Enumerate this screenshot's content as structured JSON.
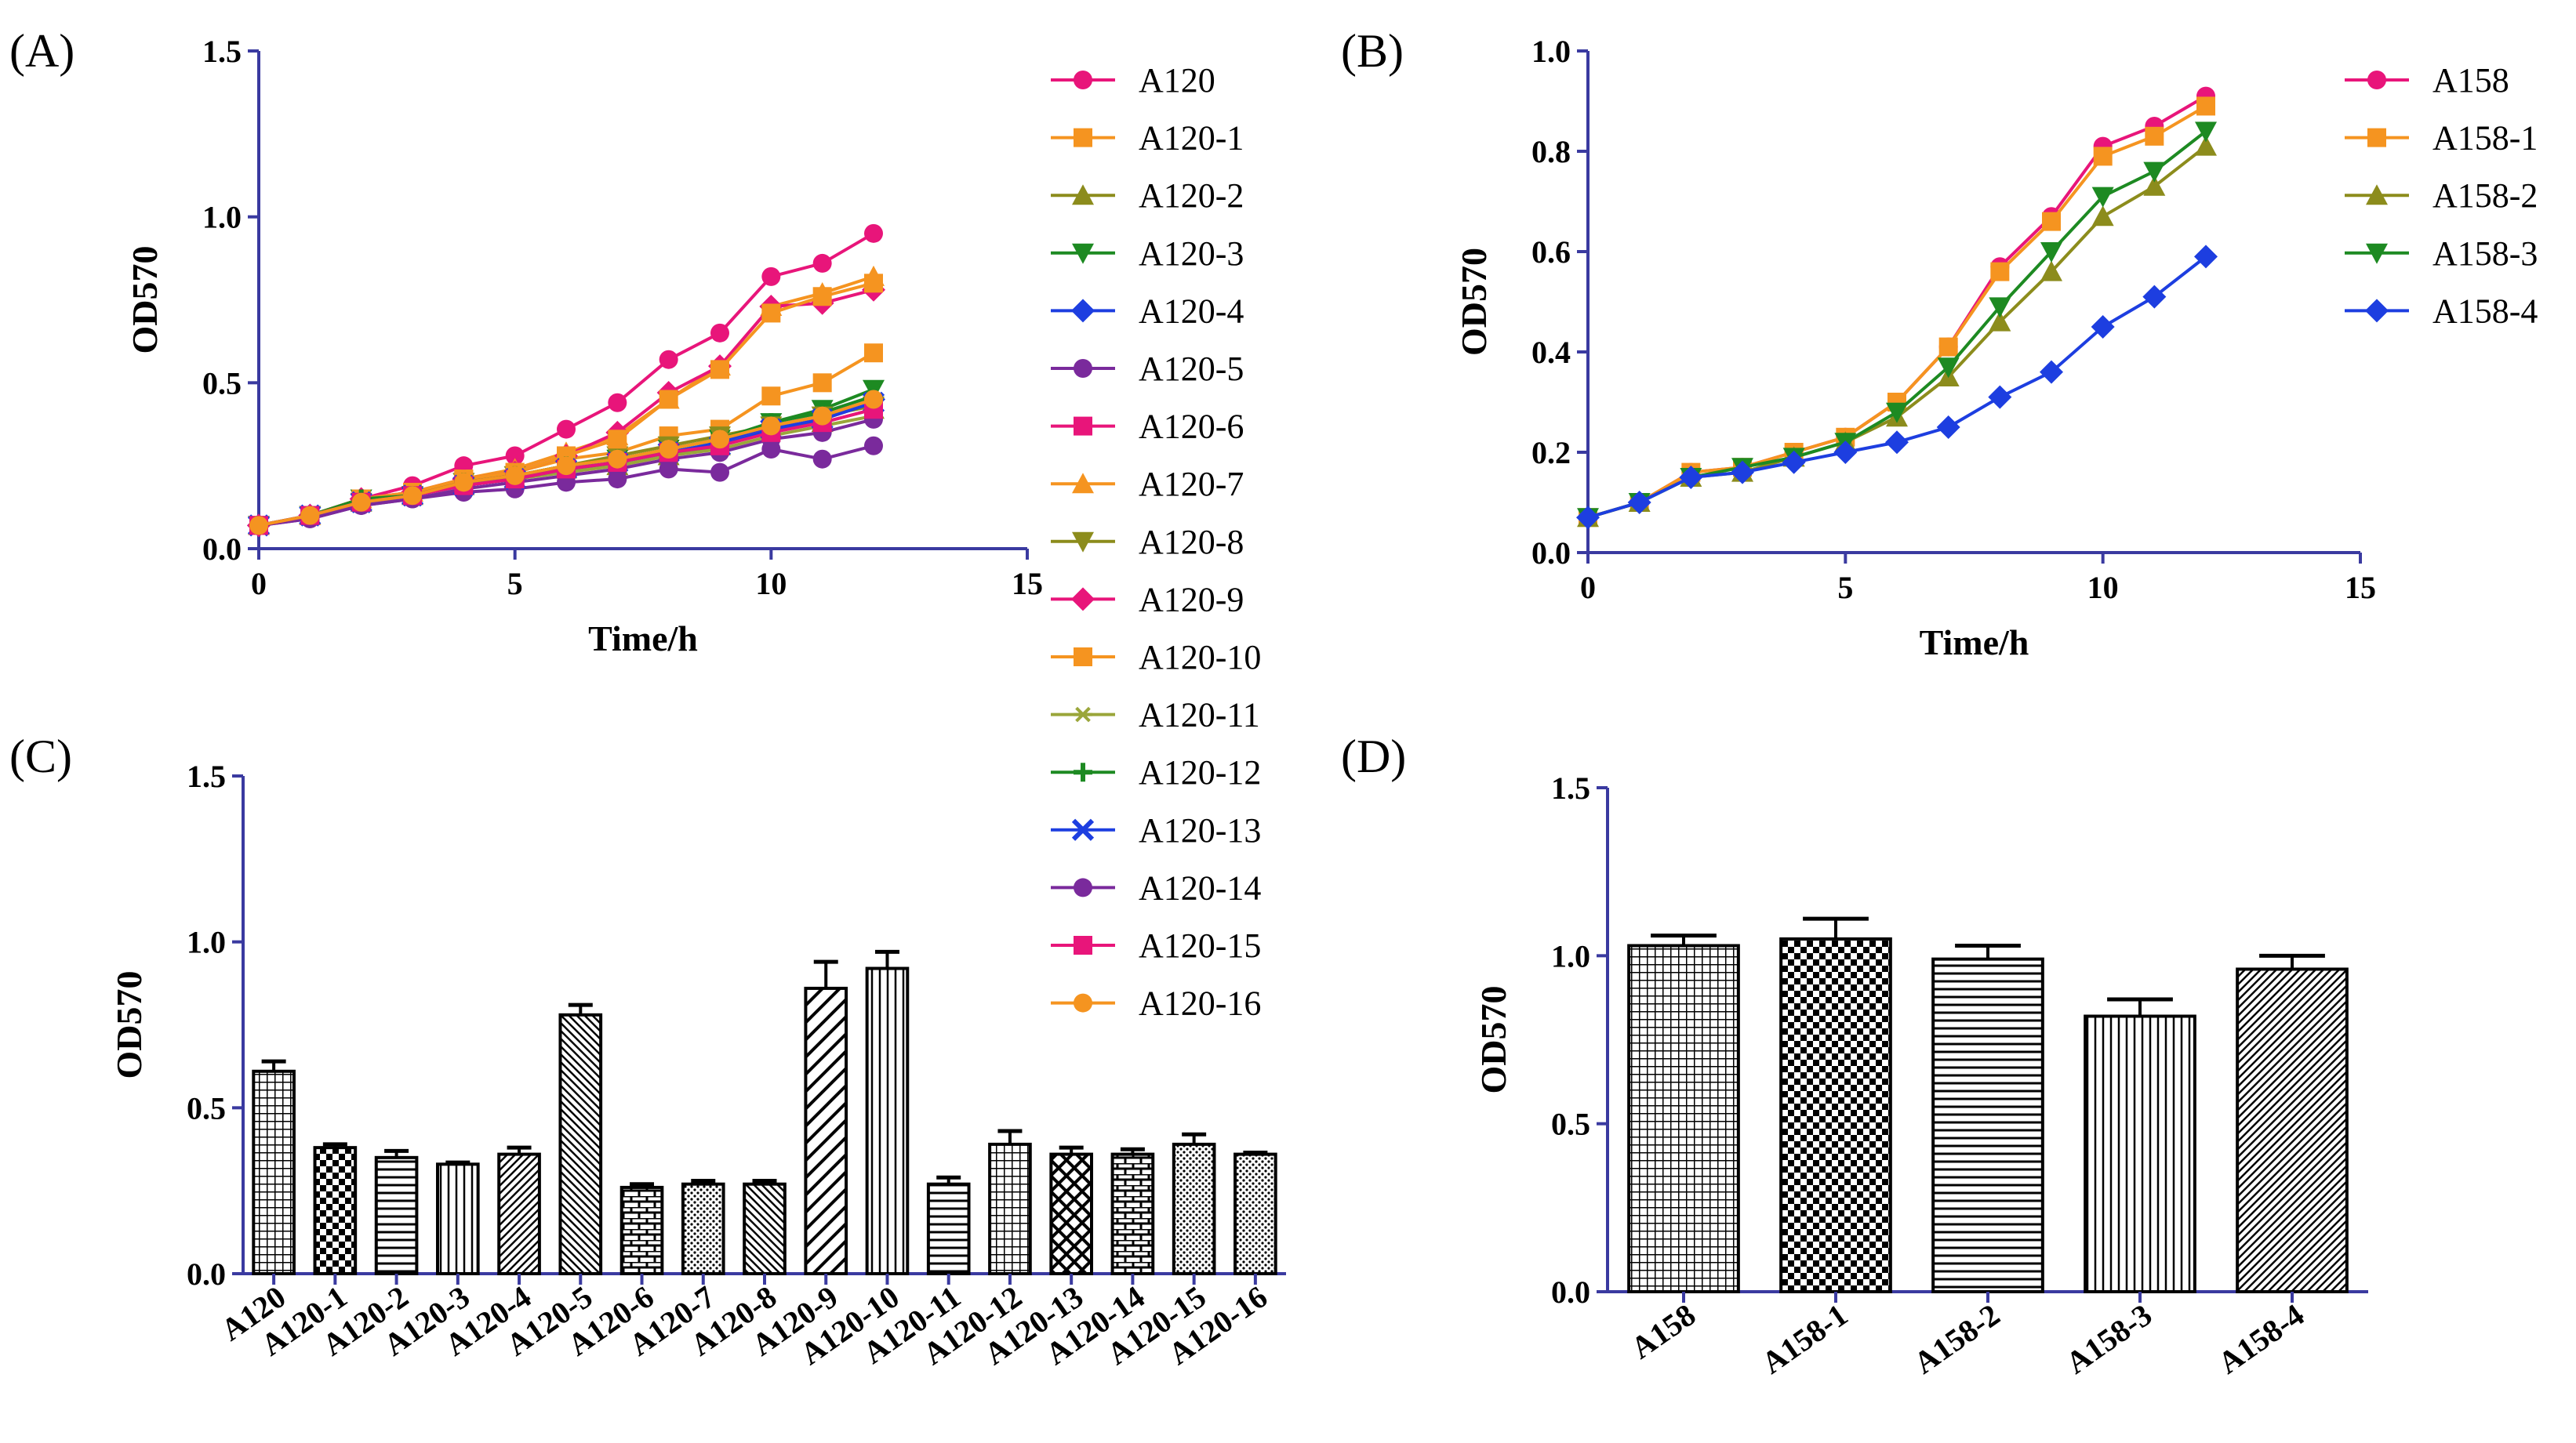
{
  "colors": {
    "axis": "#3a3aa0",
    "bar_stroke": "#000000",
    "pink": "#e8157a",
    "orange": "#f59420",
    "olive": "#8c8c1c",
    "green": "#1d8a22",
    "blue": "#1d3ee0",
    "purple": "#7a2a9c",
    "magenta": "#e8157a",
    "lime": "#9aa63a"
  },
  "chart_data": [
    {
      "panel": "(A)",
      "type": "line",
      "xlabel": "Time/h",
      "ylabel": "OD570",
      "xlim": [
        0,
        15
      ],
      "ylim": [
        0,
        1.5
      ],
      "xticks": [
        "0",
        "5",
        "10",
        "15"
      ],
      "yticks": [
        "0.0",
        "0.5",
        "1.0",
        "1.5"
      ],
      "x": [
        0,
        1,
        2,
        3,
        4,
        5,
        6,
        7,
        8,
        9,
        10,
        11,
        12
      ],
      "series": [
        {
          "name": "A120",
          "marker": "circle",
          "color": "#e8157a",
          "values": [
            0.07,
            0.1,
            0.15,
            0.19,
            0.25,
            0.28,
            0.36,
            0.44,
            0.57,
            0.65,
            0.82,
            0.86,
            0.95
          ]
        },
        {
          "name": "A120-1",
          "marker": "square",
          "color": "#f59420",
          "values": [
            0.07,
            0.1,
            0.15,
            0.16,
            0.21,
            0.23,
            0.27,
            0.29,
            0.34,
            0.36,
            0.46,
            0.5,
            0.59
          ]
        },
        {
          "name": "A120-2",
          "marker": "triangle",
          "color": "#8c8c1c",
          "values": [
            0.07,
            0.1,
            0.14,
            0.16,
            0.19,
            0.21,
            0.24,
            0.25,
            0.28,
            0.31,
            0.36,
            0.38,
            0.42
          ]
        },
        {
          "name": "A120-3",
          "marker": "triangle-down",
          "color": "#1d8a22",
          "values": [
            0.07,
            0.1,
            0.15,
            0.16,
            0.2,
            0.22,
            0.25,
            0.27,
            0.3,
            0.33,
            0.38,
            0.42,
            0.48
          ]
        },
        {
          "name": "A120-4",
          "marker": "diamond",
          "color": "#1d3ee0",
          "values": [
            0.07,
            0.1,
            0.14,
            0.16,
            0.19,
            0.21,
            0.24,
            0.26,
            0.29,
            0.32,
            0.37,
            0.4,
            0.45
          ]
        },
        {
          "name": "A120-5",
          "marker": "circle",
          "color": "#7a2a9c",
          "values": [
            0.07,
            0.09,
            0.13,
            0.15,
            0.17,
            0.18,
            0.2,
            0.21,
            0.24,
            0.23,
            0.3,
            0.27,
            0.31
          ]
        },
        {
          "name": "A120-6",
          "marker": "square",
          "color": "#e8157a",
          "values": [
            0.07,
            0.1,
            0.14,
            0.16,
            0.19,
            0.21,
            0.24,
            0.26,
            0.29,
            0.31,
            0.36,
            0.39,
            0.44
          ]
        },
        {
          "name": "A120-7",
          "marker": "triangle",
          "color": "#f59420",
          "values": [
            0.07,
            0.1,
            0.15,
            0.17,
            0.21,
            0.24,
            0.29,
            0.34,
            0.45,
            0.55,
            0.73,
            0.77,
            0.82
          ]
        },
        {
          "name": "A120-8",
          "marker": "triangle-down",
          "color": "#8c8c1c",
          "values": [
            0.07,
            0.1,
            0.14,
            0.16,
            0.2,
            0.22,
            0.25,
            0.28,
            0.31,
            0.34,
            0.37,
            0.4,
            0.43
          ]
        },
        {
          "name": "A120-9",
          "marker": "diamond",
          "color": "#e8157a",
          "values": [
            0.07,
            0.1,
            0.15,
            0.17,
            0.21,
            0.23,
            0.28,
            0.35,
            0.47,
            0.55,
            0.73,
            0.74,
            0.78
          ]
        },
        {
          "name": "A120-10",
          "marker": "square",
          "color": "#f59420",
          "values": [
            0.07,
            0.1,
            0.15,
            0.17,
            0.21,
            0.23,
            0.28,
            0.33,
            0.45,
            0.54,
            0.71,
            0.76,
            0.8
          ]
        },
        {
          "name": "A120-11",
          "marker": "star",
          "color": "#9aa63a",
          "values": [
            0.07,
            0.1,
            0.14,
            0.16,
            0.19,
            0.21,
            0.23,
            0.25,
            0.28,
            0.3,
            0.34,
            0.37,
            0.4
          ]
        },
        {
          "name": "A120-12",
          "marker": "plus",
          "color": "#1d8a22",
          "values": [
            0.07,
            0.1,
            0.15,
            0.16,
            0.2,
            0.22,
            0.25,
            0.27,
            0.3,
            0.33,
            0.38,
            0.41,
            0.46
          ]
        },
        {
          "name": "A120-13",
          "marker": "cross",
          "color": "#1d3ee0",
          "values": [
            0.07,
            0.1,
            0.14,
            0.16,
            0.19,
            0.21,
            0.24,
            0.26,
            0.29,
            0.31,
            0.36,
            0.39,
            0.44
          ]
        },
        {
          "name": "A120-14",
          "marker": "circle",
          "color": "#7a2a9c",
          "values": [
            0.07,
            0.09,
            0.13,
            0.15,
            0.18,
            0.2,
            0.22,
            0.24,
            0.27,
            0.29,
            0.33,
            0.35,
            0.39
          ]
        },
        {
          "name": "A120-15",
          "marker": "square",
          "color": "#e8157a",
          "values": [
            0.07,
            0.1,
            0.14,
            0.16,
            0.19,
            0.21,
            0.24,
            0.26,
            0.29,
            0.31,
            0.35,
            0.38,
            0.42
          ]
        },
        {
          "name": "A120-16",
          "marker": "circle",
          "color": "#f59420",
          "values": [
            0.07,
            0.1,
            0.14,
            0.16,
            0.2,
            0.22,
            0.25,
            0.27,
            0.3,
            0.33,
            0.37,
            0.4,
            0.45
          ]
        }
      ]
    },
    {
      "panel": "(B)",
      "type": "line",
      "xlabel": "Time/h",
      "ylabel": "OD570",
      "xlim": [
        0,
        15
      ],
      "ylim": [
        0,
        1.0
      ],
      "xticks": [
        "0",
        "5",
        "10",
        "15"
      ],
      "yticks": [
        "0.0",
        "0.2",
        "0.4",
        "0.6",
        "0.8",
        "1.0"
      ],
      "x": [
        0,
        1,
        2,
        3,
        4,
        5,
        6,
        7,
        8,
        9,
        10,
        11,
        12
      ],
      "series": [
        {
          "name": "A158",
          "marker": "circle",
          "color": "#e8157a",
          "values": [
            0.07,
            0.1,
            0.16,
            0.17,
            0.2,
            0.23,
            0.3,
            0.41,
            0.57,
            0.67,
            0.81,
            0.85,
            0.91
          ]
        },
        {
          "name": "A158-1",
          "marker": "square",
          "color": "#f59420",
          "values": [
            0.07,
            0.1,
            0.16,
            0.17,
            0.2,
            0.23,
            0.3,
            0.41,
            0.56,
            0.66,
            0.79,
            0.83,
            0.89
          ]
        },
        {
          "name": "A158-2",
          "marker": "triangle",
          "color": "#8c8c1c",
          "values": [
            0.07,
            0.1,
            0.15,
            0.16,
            0.19,
            0.22,
            0.27,
            0.35,
            0.46,
            0.56,
            0.67,
            0.73,
            0.81
          ]
        },
        {
          "name": "A158-3",
          "marker": "triangle-down",
          "color": "#1d8a22",
          "values": [
            0.07,
            0.1,
            0.15,
            0.17,
            0.19,
            0.22,
            0.28,
            0.37,
            0.49,
            0.6,
            0.71,
            0.76,
            0.84
          ]
        },
        {
          "name": "A158-4",
          "marker": "diamond",
          "color": "#1d3ee0",
          "values": [
            0.07,
            0.1,
            0.15,
            0.16,
            0.18,
            0.2,
            0.22,
            0.25,
            0.31,
            0.36,
            0.45,
            0.51,
            0.59
          ]
        }
      ]
    },
    {
      "panel": "(C)",
      "type": "bar",
      "ylabel": "OD570",
      "ylim": [
        0,
        1.5
      ],
      "yticks": [
        "0.0",
        "0.5",
        "1.0",
        "1.5"
      ],
      "categories": [
        "A120",
        "A120-1",
        "A120-2",
        "A120-3",
        "A120-4",
        "A120-5",
        "A120-6",
        "A120-7",
        "A120-8",
        "A120-9",
        "A120-10",
        "A120-11",
        "A120-12",
        "A120-13",
        "A120-14",
        "A120-15",
        "A120-16"
      ],
      "values": [
        0.61,
        0.38,
        0.35,
        0.33,
        0.36,
        0.78,
        0.26,
        0.27,
        0.27,
        0.86,
        0.92,
        0.27,
        0.39,
        0.36,
        0.36,
        0.39,
        0.36
      ],
      "errors": [
        0.03,
        0.01,
        0.02,
        0.005,
        0.02,
        0.03,
        0.01,
        0.01,
        0.01,
        0.08,
        0.05,
        0.02,
        0.04,
        0.02,
        0.015,
        0.03,
        0.005
      ],
      "patterns": [
        "grid",
        "checker",
        "hlines",
        "vlines",
        "diagfwd",
        "diagback",
        "brick",
        "dots",
        "diagback",
        "diagwide",
        "vlines",
        "hlines",
        "grid",
        "cross",
        "brick",
        "dots",
        "dots"
      ]
    },
    {
      "panel": "(D)",
      "type": "bar",
      "ylabel": "OD570",
      "ylim": [
        0,
        1.5
      ],
      "yticks": [
        "0.0",
        "0.5",
        "1.0",
        "1.5"
      ],
      "categories": [
        "A158",
        "A158-1",
        "A158-2",
        "A158-3",
        "A158-4"
      ],
      "values": [
        1.03,
        1.05,
        0.99,
        0.82,
        0.96
      ],
      "errors": [
        0.03,
        0.06,
        0.04,
        0.05,
        0.04
      ],
      "patterns": [
        "grid",
        "checker",
        "hlines",
        "vlines",
        "diagfwd"
      ]
    }
  ]
}
